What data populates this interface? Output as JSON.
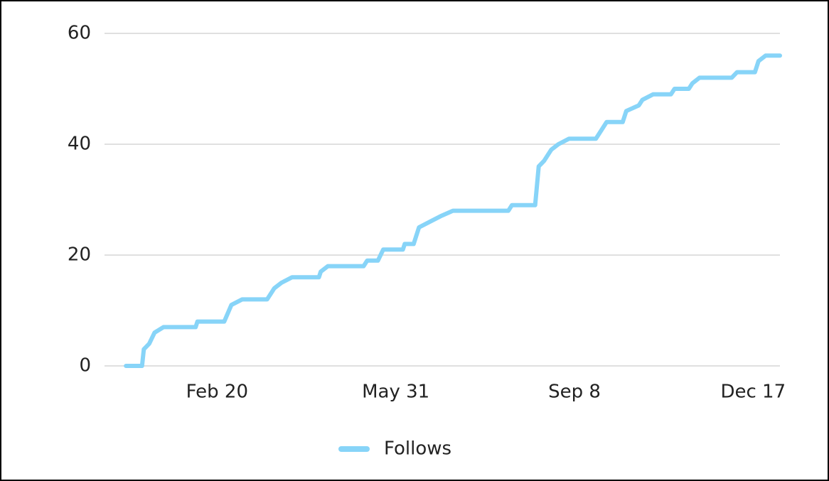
{
  "chart_data": {
    "type": "line",
    "x": [
      0,
      9,
      10,
      13,
      16,
      21,
      39,
      40,
      55,
      59,
      65,
      79,
      83,
      87,
      93,
      108,
      109,
      113,
      133,
      135,
      141,
      144,
      155,
      156,
      161,
      164,
      170,
      176,
      183,
      214,
      216,
      229,
      231,
      234,
      238,
      242,
      248,
      263,
      267,
      269,
      278,
      280,
      287,
      289,
      295,
      305,
      307,
      315,
      317,
      321,
      339,
      342,
      352,
      354,
      358,
      366
    ],
    "series": [
      {
        "name": "Follows",
        "color": "#87d4f8",
        "values": [
          0,
          0,
          3,
          4,
          6,
          7,
          7,
          8,
          8,
          11,
          12,
          12,
          14,
          15,
          16,
          16,
          17,
          18,
          18,
          19,
          19,
          21,
          21,
          22,
          22,
          25,
          26,
          27,
          28,
          28,
          29,
          29,
          36,
          37,
          39,
          40,
          41,
          41,
          43,
          44,
          44,
          46,
          47,
          48,
          49,
          49,
          50,
          50,
          51,
          52,
          52,
          53,
          53,
          55,
          56,
          56
        ]
      }
    ],
    "xlim": [
      -12,
      366
    ],
    "xticks": [
      {
        "value": 51,
        "label": "Feb 20"
      },
      {
        "value": 151,
        "label": "May 31"
      },
      {
        "value": 251,
        "label": "Sep 8"
      },
      {
        "value": 351,
        "label": "Dec 17"
      }
    ],
    "ylim": [
      0,
      60
    ],
    "yticks": [
      0,
      20,
      40,
      60
    ],
    "grid": true,
    "legend": "bottom"
  }
}
